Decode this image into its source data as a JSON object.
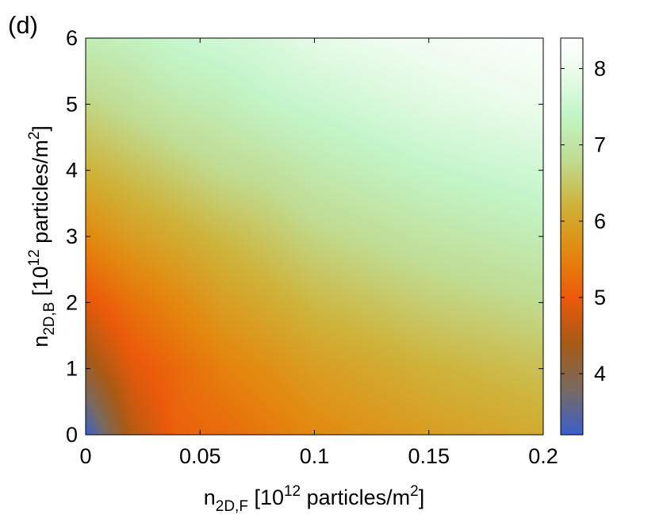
{
  "panel_label": "(d)",
  "chart_data": {
    "type": "heatmap",
    "title": "",
    "x_axis": {
      "label": {
        "base": "n",
        "sub": "2D,F",
        "pre": " [10",
        "sup": "12",
        "mid": " particles/m",
        "sup2": "2",
        "post": "]"
      },
      "range": [
        0,
        0.2
      ],
      "ticks": [
        0,
        0.05,
        0.1,
        0.15,
        0.2
      ],
      "tick_labels": [
        "0",
        "0.05",
        "0.1",
        "0.15",
        "0.2"
      ]
    },
    "y_axis": {
      "label": {
        "base": "n",
        "sub": "2D,B",
        "pre": " [10",
        "sup": "12",
        "mid": " particles/m",
        "sup2": "2",
        "post": "]"
      },
      "range": [
        0,
        6
      ],
      "ticks": [
        0,
        1,
        2,
        3,
        4,
        5,
        6
      ],
      "tick_labels": [
        "0",
        "1",
        "2",
        "3",
        "4",
        "5",
        "6"
      ]
    },
    "colorbar": {
      "range": [
        3.2,
        8.4
      ],
      "ticks": [
        4,
        5,
        6,
        7,
        8
      ],
      "tick_labels": [
        "4",
        "5",
        "6",
        "7",
        "8"
      ],
      "colors": [
        {
          "v": 3.2,
          "c": "#3b5fcf"
        },
        {
          "v": 3.8,
          "c": "#7a6a60"
        },
        {
          "v": 4.4,
          "c": "#a85a16"
        },
        {
          "v": 5.0,
          "c": "#ec5a0a"
        },
        {
          "v": 5.6,
          "c": "#e3890d"
        },
        {
          "v": 6.2,
          "c": "#cfb238"
        },
        {
          "v": 6.8,
          "c": "#c0dc92"
        },
        {
          "v": 7.4,
          "c": "#c2f5c8"
        },
        {
          "v": 8.0,
          "c": "#eefcee"
        },
        {
          "v": 8.4,
          "c": "#ffffff"
        }
      ]
    },
    "values": {
      "x": [
        0,
        0.02,
        0.04,
        0.06,
        0.08,
        0.1,
        0.15,
        0.2
      ],
      "y": [
        0,
        1,
        2,
        3,
        4,
        5,
        6
      ],
      "z": [
        [
          3.2,
          4.5,
          5.1,
          5.2,
          5.4,
          5.6,
          5.9,
          6.1
        ],
        [
          4.2,
          4.9,
          5.2,
          5.5,
          5.7,
          5.9,
          6.2,
          6.4
        ],
        [
          4.9,
          5.3,
          5.6,
          5.9,
          6.1,
          6.3,
          6.6,
          6.8
        ],
        [
          5.6,
          5.9,
          6.1,
          6.3,
          6.5,
          6.7,
          7.0,
          7.2
        ],
        [
          6.2,
          6.4,
          6.6,
          6.8,
          6.9,
          7.1,
          7.4,
          7.6
        ],
        [
          6.7,
          6.9,
          7.1,
          7.2,
          7.4,
          7.5,
          7.8,
          8.0
        ],
        [
          7.2,
          7.3,
          7.5,
          7.6,
          7.7,
          7.9,
          8.1,
          8.3
        ]
      ]
    },
    "grid": false,
    "legend": "colorbar-right"
  }
}
